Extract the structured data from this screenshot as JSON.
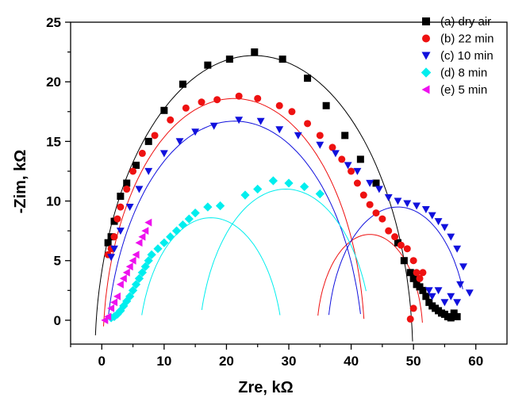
{
  "chart_data": {
    "type": "scatter",
    "xlabel": "Zre, kΩ",
    "ylabel": "-Zim, kΩ",
    "xlim": [
      -5,
      65
    ],
    "ylim": [
      -2,
      25
    ],
    "xticks": [
      0,
      10,
      20,
      30,
      40,
      50,
      60
    ],
    "yticks": [
      0,
      5,
      10,
      15,
      20,
      25
    ],
    "grid": false,
    "legend_position": "top-right",
    "series": [
      {
        "name": "(a) dry air",
        "marker": "square",
        "color": "#000000",
        "x": [
          1.0,
          1.5,
          2.0,
          3.0,
          4.0,
          5.5,
          7.5,
          10.0,
          13.0,
          17.0,
          20.5,
          24.5,
          29.0,
          33.0,
          36.0,
          39.0,
          41.5,
          44.0,
          47.5,
          48.5,
          49.5,
          50.0,
          50.5,
          51.0,
          51.5,
          52.0,
          52.5,
          53.0,
          53.5,
          54.0,
          54.5,
          55.0,
          55.5,
          56.0,
          56.5,
          57.0
        ],
        "y": [
          6.5,
          7.0,
          8.3,
          10.4,
          11.5,
          13.0,
          15.0,
          17.6,
          19.8,
          21.4,
          21.9,
          22.5,
          21.9,
          20.3,
          18.0,
          15.5,
          13.5,
          11.5,
          6.5,
          5.0,
          4.0,
          3.5,
          3.0,
          2.8,
          2.5,
          2.0,
          1.5,
          1.2,
          1.0,
          0.8,
          0.6,
          0.5,
          0.3,
          0.2,
          0.6,
          0.3
        ]
      },
      {
        "name": "(b) 22 min",
        "marker": "circle",
        "color": "#ee1111",
        "x": [
          1.0,
          1.5,
          2.0,
          2.5,
          3.0,
          4.0,
          5.0,
          6.5,
          8.5,
          11.0,
          13.5,
          16.0,
          18.5,
          22.0,
          25.0,
          28.5,
          30.5,
          33.0,
          35.0,
          37.0,
          38.5,
          40.0,
          41.0,
          42.0,
          43.0,
          44.0,
          45.0,
          46.0,
          47.0,
          48.0,
          49.0,
          50.0,
          50.5,
          51.0,
          51.5,
          50.0,
          49.5
        ],
        "y": [
          5.5,
          6.0,
          7.0,
          8.5,
          9.5,
          11.0,
          12.5,
          14.0,
          15.5,
          16.8,
          17.8,
          18.3,
          18.5,
          18.8,
          18.6,
          18.0,
          17.5,
          16.5,
          15.5,
          14.5,
          13.5,
          12.5,
          11.5,
          10.5,
          9.7,
          9.0,
          8.5,
          7.5,
          7.0,
          6.3,
          6.0,
          5.0,
          4.0,
          3.5,
          4.0,
          1.0,
          0.1
        ]
      },
      {
        "name": "(c) 10 min",
        "marker": "triangle-down",
        "color": "#1111dd",
        "x": [
          1.5,
          2.0,
          3.0,
          4.5,
          6.0,
          7.5,
          10.0,
          12.5,
          15.0,
          18.0,
          22.0,
          25.5,
          28.5,
          31.5,
          35.0,
          37.5,
          39.5,
          41.0,
          43.0,
          44.5,
          46.0,
          47.5,
          49.0,
          50.5,
          52.0,
          53.0,
          54.0,
          55.0,
          56.0,
          57.0,
          58.0,
          59.0,
          57.5,
          57.0,
          56.0,
          55.0,
          54.0,
          53.0,
          52.5
        ],
        "y": [
          5.3,
          6.0,
          7.5,
          9.5,
          11.0,
          12.5,
          14.0,
          15.0,
          15.8,
          16.3,
          16.8,
          16.7,
          16.0,
          15.5,
          14.7,
          14.0,
          13.0,
          12.5,
          11.5,
          11.0,
          10.3,
          10.0,
          9.8,
          9.6,
          9.3,
          8.8,
          8.3,
          7.8,
          7.0,
          6.0,
          4.5,
          2.3,
          3.0,
          1.5,
          2.0,
          1.5,
          2.5,
          2.0,
          2.5
        ]
      },
      {
        "name": "(d) 8 min",
        "marker": "diamond",
        "color": "#00eeee",
        "x": [
          1.5,
          2.0,
          2.5,
          3.0,
          3.5,
          4.0,
          4.5,
          5.0,
          5.5,
          6.0,
          6.5,
          7.0,
          7.5,
          8.0,
          9.0,
          10.0,
          11.0,
          12.0,
          13.0,
          14.0,
          15.0,
          17.0,
          19.0,
          23.0,
          25.0,
          27.5,
          30.0,
          32.5,
          35.0
        ],
        "y": [
          0.2,
          0.3,
          0.5,
          0.8,
          1.2,
          1.6,
          2.0,
          2.5,
          3.0,
          3.5,
          4.0,
          4.5,
          5.0,
          5.5,
          6.0,
          6.5,
          7.0,
          7.5,
          8.0,
          8.5,
          9.0,
          9.5,
          9.6,
          10.5,
          11.0,
          11.7,
          11.5,
          11.2,
          10.6
        ]
      },
      {
        "name": "(e) 5 min",
        "marker": "triangle-left",
        "color": "#ee11ee",
        "x": [
          0.5,
          1.0,
          1.5,
          2.0,
          2.5,
          3.0,
          3.5,
          4.0,
          4.5,
          5.0,
          5.5,
          6.0,
          6.5,
          7.0,
          7.5
        ],
        "y": [
          0.0,
          0.3,
          1.0,
          1.5,
          2.0,
          3.0,
          3.5,
          4.0,
          4.5,
          5.0,
          5.5,
          6.5,
          7.0,
          7.5,
          8.2
        ]
      }
    ]
  }
}
